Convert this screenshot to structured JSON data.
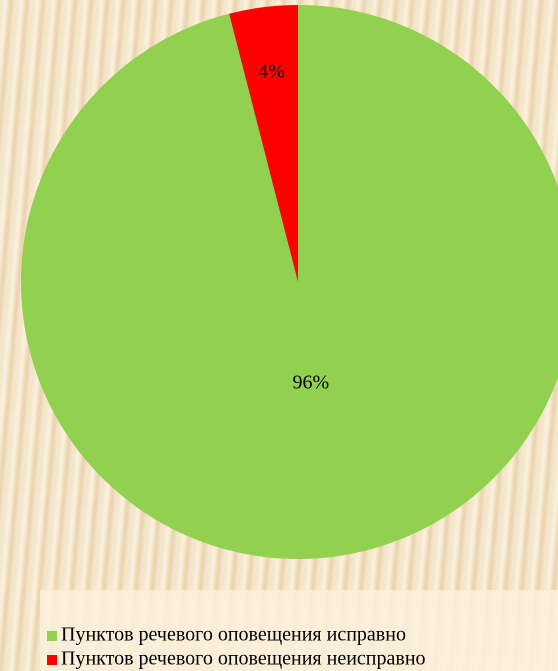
{
  "chart_data": {
    "type": "pie",
    "categories": [
      "Пунктов речевого оповещения исправно",
      "Пунктов речевого оповещения неисправно"
    ],
    "values": [
      96,
      4
    ],
    "value_labels": [
      "96%",
      "4%"
    ],
    "colors": [
      "#92d050",
      "#ff0000"
    ]
  }
}
